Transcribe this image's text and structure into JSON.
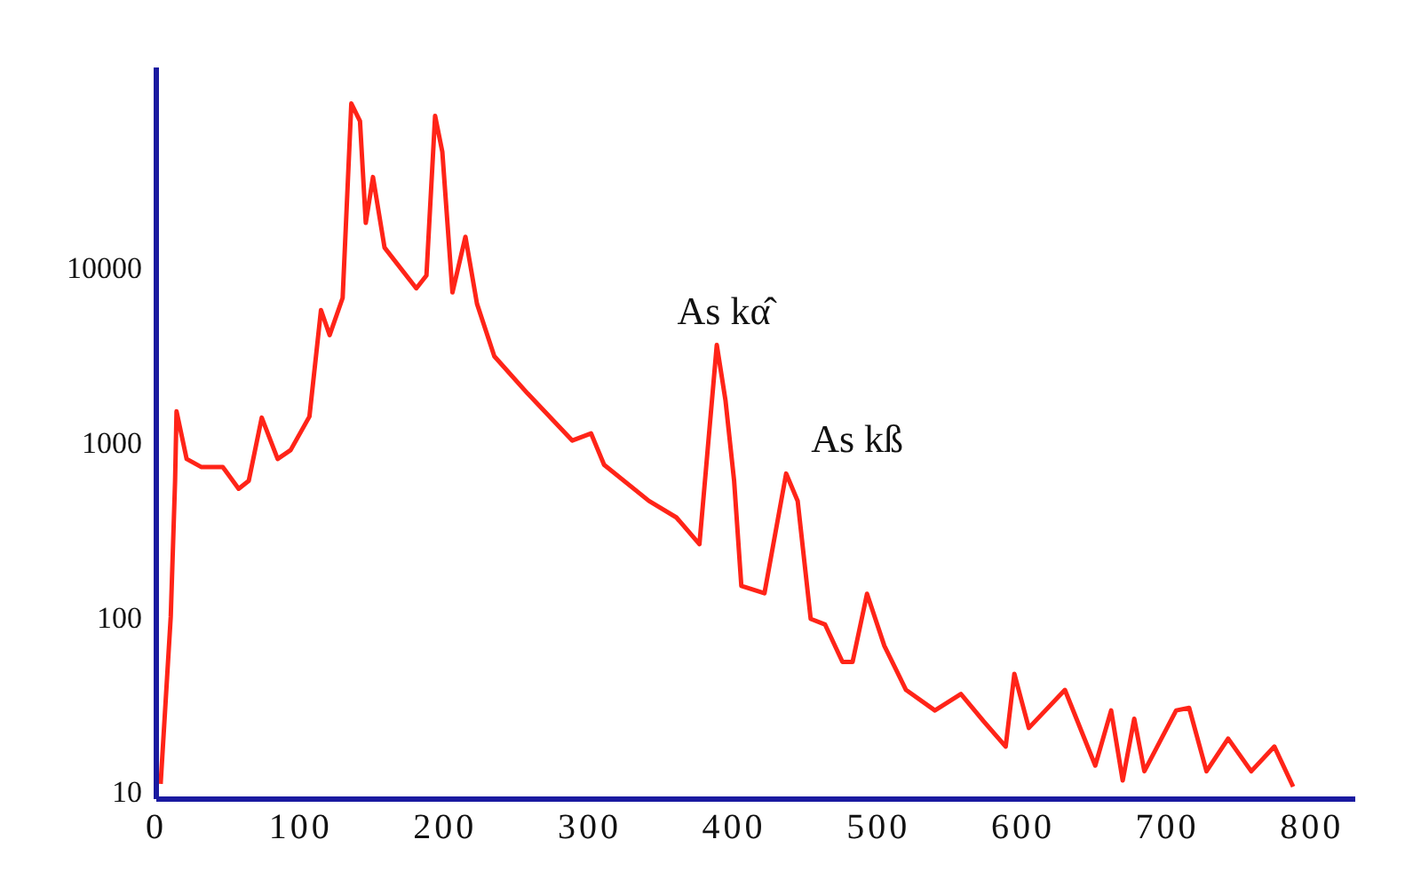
{
  "chart_data": {
    "type": "line",
    "log": "y",
    "marker": "none",
    "line_style": "solid",
    "xlim": [
      0,
      830
    ],
    "xticks": [
      0,
      100,
      200,
      300,
      400,
      500,
      600,
      700,
      800
    ],
    "ylim": [
      9,
      140000
    ],
    "yticks": [
      10,
      100,
      1000,
      10000
    ],
    "x": [
      3,
      10,
      13,
      14,
      21,
      31,
      46,
      57,
      64,
      73,
      84,
      93,
      106,
      114,
      120,
      129,
      135,
      141,
      145,
      150,
      158,
      180,
      187,
      193,
      198,
      205,
      214,
      222,
      234,
      257,
      288,
      301,
      310,
      341,
      360,
      376,
      388,
      394,
      400,
      405,
      421,
      436,
      444,
      453,
      463,
      475,
      482,
      492,
      504,
      519,
      539,
      557,
      573,
      588,
      594,
      604,
      629,
      650,
      661,
      669,
      677,
      684,
      706,
      715,
      727,
      742,
      758,
      774,
      787
    ],
    "series": [
      {
        "color": "#ff2418",
        "values": [
          11,
          100,
          600,
          1500,
          800,
          720,
          720,
          540,
          600,
          1380,
          800,
          900,
          1400,
          5700,
          4100,
          6700,
          87000,
          69000,
          18000,
          33000,
          13000,
          7600,
          9000,
          74000,
          46000,
          7200,
          15000,
          6200,
          3100,
          1900,
          1020,
          1120,
          740,
          460,
          370,
          260,
          3600,
          1740,
          600,
          150,
          136,
          660,
          460,
          97,
          90,
          55,
          55,
          135,
          68,
          38,
          29,
          36,
          25,
          18,
          47,
          23,
          38,
          14,
          29,
          11.5,
          26,
          13,
          29,
          30,
          13,
          20,
          13,
          18,
          10.6
        ]
      }
    ],
    "annotations": [
      {
        "text": "As kα̂",
        "x": 388,
        "y": 3600
      },
      {
        "text": "As kß",
        "x": 436,
        "y": 660
      }
    ]
  }
}
